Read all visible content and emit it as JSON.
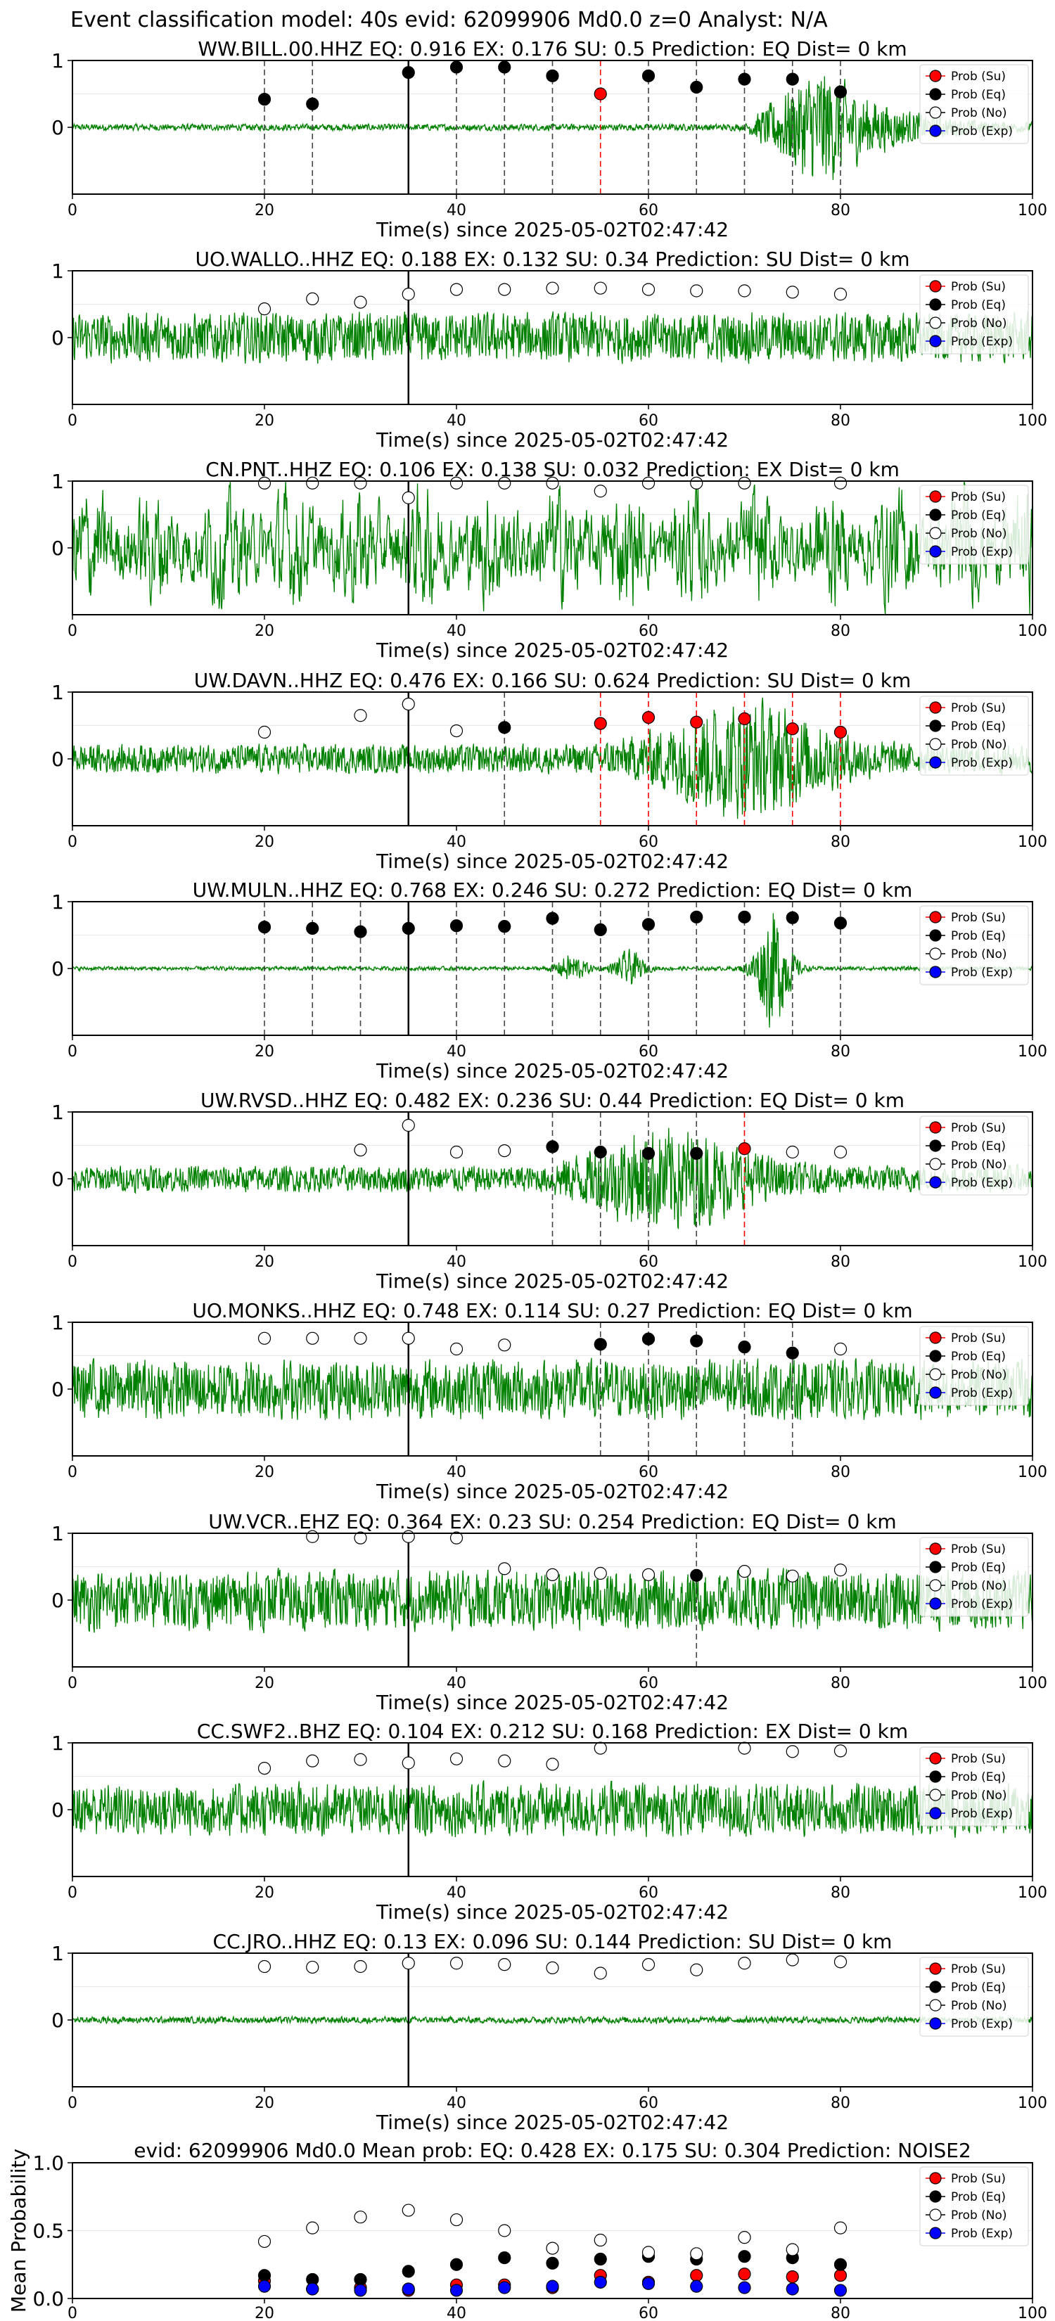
{
  "suptitle": "Event classification model: 40s evid: 62099906 Md0.0 z=0 Analyst: N/A",
  "colors": {
    "waveform": "#008000",
    "su": "#ff0000",
    "eq": "#000000",
    "no": "#ffffff",
    "exp": "#0000ff"
  },
  "legend_labels": [
    "Prob (Su)",
    "Prob (Eq)",
    "Prob (No)",
    "Prob (Exp)"
  ],
  "chart_data": [
    {
      "type": "line",
      "title": "WW.BILL.00.HHZ   EQ: 0.916  EX: 0.176  SU: 0.5   Prediction: EQ    Dist= 0 km",
      "xlabel": "Time(s) since 2025-05-02T02:47:42",
      "xlim": [
        0,
        100
      ],
      "ylim": [
        -1,
        1
      ],
      "xticks": [
        "0",
        "20",
        "40",
        "60",
        "80",
        "100"
      ],
      "yticks": [
        "1",
        "0"
      ],
      "legend": "top-right",
      "event_line_x": 35,
      "waveform_profile": {
        "amp": 0.05,
        "style": "quiet-then-strong-coda",
        "burst_start": 70,
        "burst_peak": 78,
        "burst_amp": 0.95
      },
      "window_x": [
        20,
        25,
        35,
        40,
        45,
        50,
        55,
        60,
        65,
        70,
        75,
        80
      ],
      "window_prob": [
        0.42,
        0.35,
        0.82,
        0.9,
        0.9,
        0.77,
        0.5,
        0.77,
        0.6,
        0.72,
        0.72,
        0.53
      ],
      "window_class": [
        "eq",
        "eq",
        "eq",
        "eq",
        "eq",
        "eq",
        "su",
        "eq",
        "eq",
        "eq",
        "eq",
        "eq"
      ]
    },
    {
      "type": "line",
      "title": "UO.WALLO..HHZ   EQ: 0.188  EX: 0.132  SU: 0.34   Prediction: SU    Dist= 0 km",
      "xlabel": "Time(s) since 2025-05-02T02:47:42",
      "xlim": [
        0,
        100
      ],
      "ylim": [
        -1,
        1
      ],
      "xticks": [
        "0",
        "20",
        "40",
        "60",
        "80",
        "100"
      ],
      "yticks": [
        "1",
        "0"
      ],
      "legend": "top-right",
      "event_line_x": 35,
      "waveform_profile": {
        "amp": 0.38,
        "style": "noisy"
      },
      "window_x": [
        20,
        25,
        30,
        35,
        40,
        45,
        50,
        55,
        60,
        65,
        70,
        75,
        80
      ],
      "window_prob": [
        0.43,
        0.58,
        0.53,
        0.65,
        0.72,
        0.72,
        0.74,
        0.74,
        0.72,
        0.7,
        0.7,
        0.68,
        0.65
      ],
      "window_class": [
        "no",
        "no",
        "no",
        "no",
        "no",
        "no",
        "no",
        "no",
        "no",
        "no",
        "no",
        "no",
        "no"
      ]
    },
    {
      "type": "line",
      "title": "CN.PNT..HHZ   EQ: 0.106  EX: 0.138  SU: 0.032   Prediction: EX    Dist= 0 km",
      "xlabel": "Time(s) since 2025-05-02T02:47:42",
      "xlim": [
        0,
        100
      ],
      "ylim": [
        -1,
        1
      ],
      "xticks": [
        "0",
        "20",
        "40",
        "60",
        "80",
        "100"
      ],
      "yticks": [
        "1",
        "0"
      ],
      "legend": "top-right",
      "event_line_x": 35,
      "waveform_profile": {
        "amp": 0.7,
        "style": "very-noisy"
      },
      "window_x": [
        20,
        25,
        30,
        35,
        40,
        45,
        50,
        55,
        60,
        65,
        70,
        80
      ],
      "window_prob": [
        0.97,
        0.97,
        0.97,
        0.75,
        0.97,
        0.97,
        0.97,
        0.85,
        0.97,
        0.97,
        0.97,
        0.97
      ],
      "window_class": [
        "no",
        "no",
        "no",
        "no",
        "no",
        "no",
        "no",
        "no",
        "no",
        "no",
        "no",
        "no"
      ]
    },
    {
      "type": "line",
      "title": "UW.DAVN..HHZ   EQ: 0.476  EX: 0.166  SU: 0.624   Prediction: SU    Dist= 0 km",
      "xlabel": "Time(s) since 2025-05-02T02:47:42",
      "xlim": [
        0,
        100
      ],
      "ylim": [
        -1,
        1
      ],
      "xticks": [
        "0",
        "20",
        "40",
        "60",
        "80",
        "100"
      ],
      "yticks": [
        "1",
        "0"
      ],
      "legend": "top-right",
      "event_line_x": 35,
      "waveform_profile": {
        "amp": 0.22,
        "style": "multi-burst",
        "burst_start": 55,
        "burst_peak": 70,
        "burst_amp": 0.7
      },
      "window_x": [
        20,
        30,
        35,
        40,
        45,
        55,
        60,
        65,
        70,
        75,
        80
      ],
      "window_prob": [
        0.4,
        0.65,
        0.82,
        0.42,
        0.47,
        0.53,
        0.62,
        0.55,
        0.6,
        0.45,
        0.4
      ],
      "window_class": [
        "no",
        "no",
        "no",
        "no",
        "eq",
        "su",
        "su",
        "su",
        "su",
        "su",
        "su"
      ]
    },
    {
      "type": "line",
      "title": "UW.MULN..HHZ   EQ: 0.768  EX: 0.246  SU: 0.272   Prediction: EQ    Dist= 0 km",
      "xlabel": "Time(s) since 2025-05-02T02:47:42",
      "xlim": [
        0,
        100
      ],
      "ylim": [
        -1,
        1
      ],
      "xticks": [
        "0",
        "20",
        "40",
        "60",
        "80",
        "100"
      ],
      "yticks": [
        "1",
        "0"
      ],
      "legend": "top-right",
      "event_line_x": 35,
      "waveform_profile": {
        "amp": 0.03,
        "style": "quiet-with-spikes",
        "burst_start": 70,
        "burst_peak": 73,
        "burst_amp": 0.9
      },
      "window_x": [
        20,
        25,
        30,
        35,
        40,
        45,
        50,
        55,
        60,
        65,
        70,
        75,
        80
      ],
      "window_prob": [
        0.62,
        0.6,
        0.55,
        0.6,
        0.64,
        0.63,
        0.75,
        0.58,
        0.66,
        0.77,
        0.77,
        0.76,
        0.68
      ],
      "window_class": [
        "eq",
        "eq",
        "eq",
        "eq",
        "eq",
        "eq",
        "eq",
        "eq",
        "eq",
        "eq",
        "eq",
        "eq",
        "eq"
      ]
    },
    {
      "type": "line",
      "title": "UW.RVSD..HHZ   EQ: 0.482  EX: 0.236  SU: 0.44   Prediction: EQ    Dist= 0 km",
      "xlabel": "Time(s) since 2025-05-02T02:47:42",
      "xlim": [
        0,
        100
      ],
      "ylim": [
        -1,
        1
      ],
      "xticks": [
        "0",
        "20",
        "40",
        "60",
        "80",
        "100"
      ],
      "yticks": [
        "1",
        "0"
      ],
      "legend": "top-right",
      "event_line_x": 35,
      "waveform_profile": {
        "amp": 0.2,
        "style": "multi-burst",
        "burst_start": 50,
        "burst_peak": 62,
        "burst_amp": 0.6
      },
      "window_x": [
        30,
        35,
        40,
        45,
        50,
        55,
        60,
        65,
        70,
        75,
        80
      ],
      "window_prob": [
        0.43,
        0.8,
        0.4,
        0.42,
        0.48,
        0.4,
        0.38,
        0.38,
        0.45,
        0.4,
        0.4
      ],
      "window_class": [
        "no",
        "no",
        "no",
        "no",
        "eq",
        "eq",
        "eq",
        "eq",
        "su",
        "no",
        "no"
      ]
    },
    {
      "type": "line",
      "title": "UO.MONKS..HHZ   EQ: 0.748  EX: 0.114  SU: 0.27   Prediction: EQ    Dist= 0 km",
      "xlabel": "Time(s) since 2025-05-02T02:47:42",
      "xlim": [
        0,
        100
      ],
      "ylim": [
        -1,
        1
      ],
      "xticks": [
        "0",
        "20",
        "40",
        "60",
        "80",
        "100"
      ],
      "yticks": [
        "1",
        "0"
      ],
      "legend": "top-right",
      "event_line_x": 35,
      "waveform_profile": {
        "amp": 0.45,
        "style": "noisy"
      },
      "window_x": [
        20,
        25,
        30,
        35,
        40,
        45,
        55,
        60,
        65,
        70,
        75,
        80
      ],
      "window_prob": [
        0.76,
        0.76,
        0.76,
        0.76,
        0.6,
        0.66,
        0.67,
        0.75,
        0.72,
        0.63,
        0.54,
        0.6
      ],
      "window_class": [
        "no",
        "no",
        "no",
        "no",
        "no",
        "no",
        "eq",
        "eq",
        "eq",
        "eq",
        "eq",
        "no"
      ]
    },
    {
      "type": "line",
      "title": "UW.VCR..EHZ   EQ: 0.364  EX: 0.23  SU: 0.254   Prediction: EQ    Dist= 0 km",
      "xlabel": "Time(s) since 2025-05-02T02:47:42",
      "xlim": [
        0,
        100
      ],
      "ylim": [
        -1,
        1
      ],
      "xticks": [
        "0",
        "20",
        "40",
        "60",
        "80",
        "100"
      ],
      "yticks": [
        "1",
        "0"
      ],
      "legend": "top-right",
      "event_line_x": 35,
      "waveform_profile": {
        "amp": 0.45,
        "style": "noisy"
      },
      "window_x": [
        25,
        30,
        35,
        40,
        45,
        50,
        55,
        60,
        65,
        70,
        75,
        80
      ],
      "window_prob": [
        0.95,
        0.93,
        0.95,
        0.93,
        0.47,
        0.38,
        0.4,
        0.38,
        0.37,
        0.43,
        0.36,
        0.45
      ],
      "window_class": [
        "no",
        "no",
        "no",
        "no",
        "no",
        "no",
        "no",
        "no",
        "eq",
        "no",
        "no",
        "no"
      ]
    },
    {
      "type": "line",
      "title": "CC.SWF2..BHZ   EQ: 0.104  EX: 0.212  SU: 0.168   Prediction: EX    Dist= 0 km",
      "xlabel": "Time(s) since 2025-05-02T02:47:42",
      "xlim": [
        0,
        100
      ],
      "ylim": [
        -1,
        1
      ],
      "xticks": [
        "0",
        "20",
        "40",
        "60",
        "80",
        "100"
      ],
      "yticks": [
        "1",
        "0"
      ],
      "legend": "top-right",
      "event_line_x": 35,
      "waveform_profile": {
        "amp": 0.4,
        "style": "noisy"
      },
      "window_x": [
        20,
        25,
        30,
        35,
        40,
        45,
        50,
        55,
        70,
        75,
        80
      ],
      "window_prob": [
        0.62,
        0.73,
        0.75,
        0.7,
        0.76,
        0.73,
        0.68,
        0.92,
        0.92,
        0.87,
        0.88
      ],
      "window_class": [
        "no",
        "no",
        "no",
        "no",
        "no",
        "no",
        "no",
        "no",
        "no",
        "no",
        "no"
      ]
    },
    {
      "type": "line",
      "title": "CC.JRO..HHZ   EQ: 0.13  EX: 0.096  SU: 0.144   Prediction: SU    Dist= 0 km",
      "xlabel": "Time(s) since 2025-05-02T02:47:42",
      "xlim": [
        0,
        100
      ],
      "ylim": [
        -1,
        1
      ],
      "xticks": [
        "0",
        "20",
        "40",
        "60",
        "80",
        "100"
      ],
      "yticks": [
        "1",
        "0"
      ],
      "legend": "top-right",
      "event_line_x": 35,
      "waveform_profile": {
        "amp": 0.05,
        "style": "quiet"
      },
      "window_x": [
        20,
        25,
        30,
        35,
        40,
        45,
        50,
        55,
        60,
        65,
        70,
        75,
        80
      ],
      "window_prob": [
        0.8,
        0.79,
        0.8,
        0.85,
        0.85,
        0.83,
        0.78,
        0.7,
        0.83,
        0.75,
        0.85,
        0.9,
        0.87
      ],
      "window_class": [
        "no",
        "no",
        "no",
        "no",
        "no",
        "no",
        "no",
        "no",
        "no",
        "no",
        "no",
        "no",
        "no"
      ]
    },
    {
      "type": "scatter",
      "title": "evid: 62099906  Md0.0   Mean prob:   EQ: 0.428  EX: 0.175  SU: 0.304   Prediction: NOISE2",
      "ylabel": "Mean Probability",
      "xlim": [
        0,
        100
      ],
      "ylim": [
        0,
        1
      ],
      "xticks": [
        "0",
        "20",
        "40",
        "60",
        "80",
        "100"
      ],
      "yticks": [
        "1.0",
        "0.5",
        "0.0"
      ],
      "legend": "top-right",
      "x": [
        20,
        25,
        30,
        35,
        40,
        45,
        50,
        55,
        60,
        65,
        70,
        75,
        80
      ],
      "series": [
        {
          "name": "Prob (Su)",
          "color": "su",
          "values": [
            0.13,
            0.07,
            0.08,
            0.06,
            0.1,
            0.1,
            0.08,
            0.17,
            0.12,
            0.17,
            0.18,
            0.16,
            0.17
          ]
        },
        {
          "name": "Prob (Eq)",
          "color": "eq",
          "values": [
            0.17,
            0.14,
            0.14,
            0.2,
            0.25,
            0.3,
            0.26,
            0.29,
            0.31,
            0.29,
            0.31,
            0.3,
            0.25
          ]
        },
        {
          "name": "Prob (No)",
          "color": "no",
          "values": [
            0.42,
            0.52,
            0.6,
            0.65,
            0.58,
            0.5,
            0.37,
            0.43,
            0.34,
            0.33,
            0.45,
            0.36,
            0.52
          ]
        },
        {
          "name": "Prob (Exp)",
          "color": "exp",
          "values": [
            0.09,
            0.07,
            0.06,
            0.07,
            0.06,
            0.08,
            0.09,
            0.12,
            0.11,
            0.09,
            0.08,
            0.07,
            0.06
          ]
        }
      ]
    }
  ]
}
